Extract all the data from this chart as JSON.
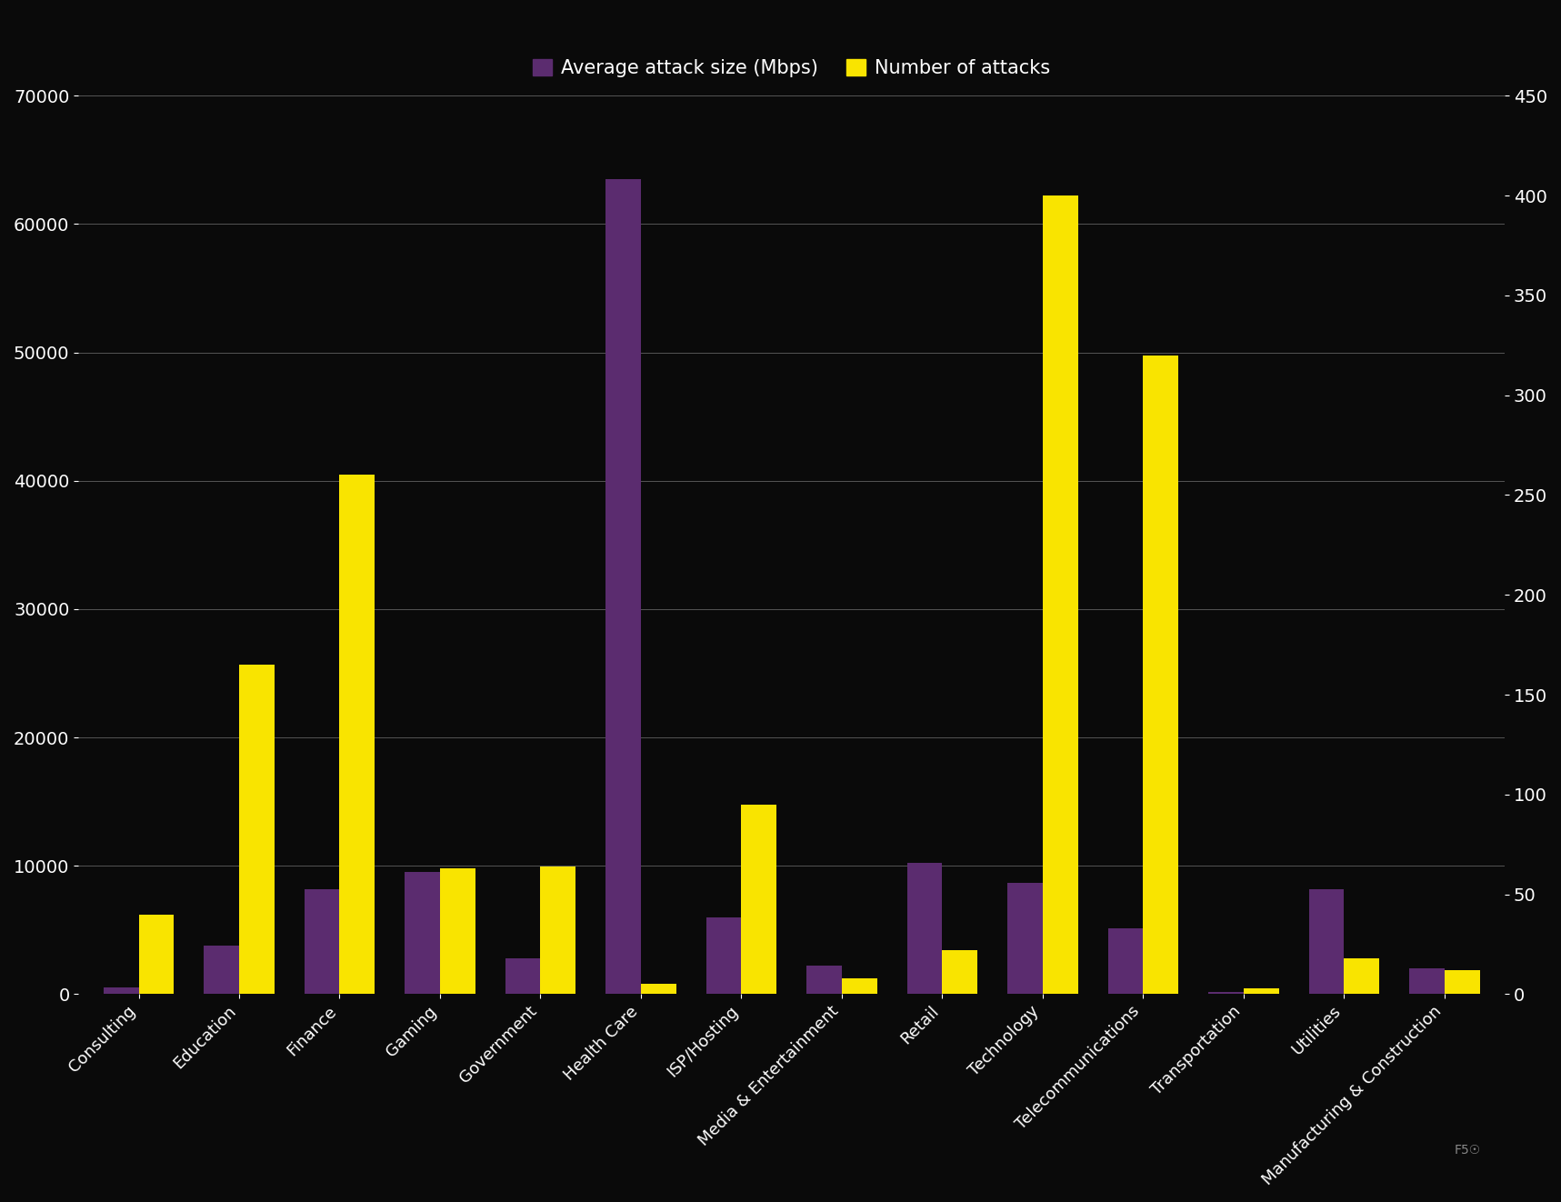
{
  "categories": [
    "Consulting",
    "Education",
    "Finance",
    "Gaming",
    "Government",
    "Health Care",
    "ISP/Hosting",
    "Media & Entertainment",
    "Retail",
    "Technology",
    "Telecommunications",
    "Transportation",
    "Utilities",
    "Manufacturing & Construction"
  ],
  "avg_attack_size": [
    500,
    3800,
    8200,
    9500,
    2800,
    63500,
    6000,
    2200,
    10200,
    8700,
    5100,
    200,
    8200,
    2000
  ],
  "num_attacks": [
    40,
    165,
    260,
    63,
    64,
    5,
    95,
    8,
    22,
    400,
    320,
    3,
    18,
    12
  ],
  "color_purple": "#5B2C6F",
  "color_yellow": "#F9E400",
  "background_color": "#0a0a0a",
  "text_color": "#ffffff",
  "grid_color": "#555555",
  "ylim_left": [
    0,
    70000
  ],
  "ylim_right": [
    0,
    450
  ],
  "yticks_left": [
    0,
    10000,
    20000,
    30000,
    40000,
    50000,
    60000,
    70000
  ],
  "yticks_right": [
    0,
    50,
    100,
    150,
    200,
    250,
    300,
    350,
    400,
    450
  ],
  "legend_labels": [
    "Average attack size (Mbps)",
    "Number of attacks"
  ],
  "bar_width": 0.35,
  "figsize": [
    17.17,
    13.22
  ],
  "dpi": 100
}
